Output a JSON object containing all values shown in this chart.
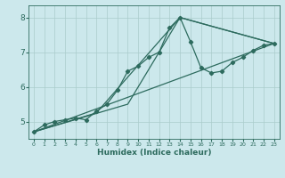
{
  "xlabel": "Humidex (Indice chaleur)",
  "background_color": "#cce8ec",
  "grid_color": "#aacccc",
  "line_color": "#2d6b5e",
  "xlim": [
    -0.5,
    23.5
  ],
  "ylim": [
    4.5,
    8.35
  ],
  "xticks": [
    0,
    1,
    2,
    3,
    4,
    5,
    6,
    7,
    8,
    9,
    10,
    11,
    12,
    13,
    14,
    15,
    16,
    17,
    18,
    19,
    20,
    21,
    22,
    23
  ],
  "yticks": [
    5,
    6,
    7,
    8
  ],
  "line1_x": [
    0,
    1,
    2,
    3,
    4,
    5,
    6,
    7,
    8,
    9,
    10,
    11,
    12,
    13,
    14,
    15,
    16,
    17,
    18,
    19,
    20,
    21,
    22,
    23
  ],
  "line1_y": [
    4.7,
    4.9,
    5.0,
    5.05,
    5.1,
    5.05,
    5.3,
    5.5,
    5.9,
    6.45,
    6.6,
    6.85,
    7.0,
    7.7,
    8.0,
    7.3,
    6.55,
    6.4,
    6.45,
    6.7,
    6.85,
    7.05,
    7.2,
    7.25
  ],
  "line2_x": [
    0,
    23
  ],
  "line2_y": [
    4.7,
    7.25
  ],
  "line3_x": [
    0,
    6,
    14,
    23
  ],
  "line3_y": [
    4.7,
    5.25,
    8.0,
    7.25
  ],
  "line4_x": [
    0,
    9,
    14,
    23
  ],
  "line4_y": [
    4.7,
    5.5,
    8.0,
    7.25
  ]
}
